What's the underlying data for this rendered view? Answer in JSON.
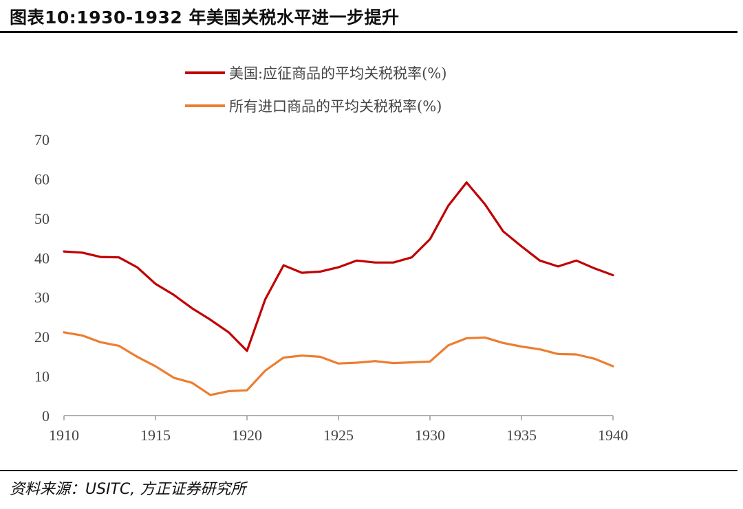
{
  "figure": {
    "title": "图表10:1930-1932 年美国关税水平进一步提升",
    "source": "资料来源：USITC, 方正证券研究所"
  },
  "chart_data": {
    "type": "line",
    "title": "",
    "xlabel": "",
    "ylabel": "",
    "xlim": [
      1910,
      1940
    ],
    "ylim": [
      0,
      70
    ],
    "x_ticks": [
      "1910",
      "1915",
      "1920",
      "1925",
      "1930",
      "1935",
      "1940"
    ],
    "y_ticks": [
      "0",
      "10",
      "20",
      "30",
      "40",
      "50",
      "60",
      "70"
    ],
    "grid": false,
    "legend_position": "top-center",
    "x": [
      1910,
      1911,
      1912,
      1913,
      1914,
      1915,
      1916,
      1917,
      1918,
      1919,
      1920,
      1921,
      1922,
      1923,
      1924,
      1925,
      1926,
      1927,
      1928,
      1929,
      1930,
      1931,
      1932,
      1933,
      1934,
      1935,
      1936,
      1937,
      1938,
      1939,
      1940
    ],
    "series": [
      {
        "name": "美国:应征商品的平均关税税率(%)",
        "color": "#c00000",
        "values": [
          41.6,
          41.3,
          40.2,
          40.1,
          37.6,
          33.4,
          30.6,
          27.2,
          24.3,
          21.1,
          16.4,
          29.5,
          38.1,
          36.2,
          36.5,
          37.6,
          39.3,
          38.8,
          38.8,
          40.1,
          44.7,
          53.2,
          59.1,
          53.6,
          46.7,
          42.9,
          39.3,
          37.8,
          39.3,
          37.3,
          35.6
        ]
      },
      {
        "name": "所有进口商品的平均关税税率(%)",
        "color": "#ed7d31",
        "values": [
          21.1,
          20.3,
          18.6,
          17.7,
          14.9,
          12.5,
          9.6,
          8.3,
          5.2,
          6.2,
          6.4,
          11.4,
          14.7,
          15.2,
          14.9,
          13.2,
          13.4,
          13.8,
          13.3,
          13.5,
          13.7,
          17.8,
          19.6,
          19.8,
          18.4,
          17.5,
          16.8,
          15.6,
          15.5,
          14.4,
          12.5
        ]
      }
    ]
  }
}
